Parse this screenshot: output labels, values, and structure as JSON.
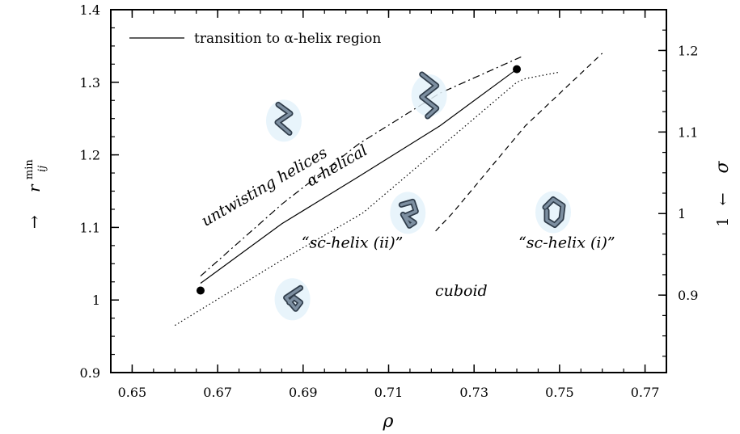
{
  "chart_data": {
    "type": "line",
    "title": "",
    "xlabel": "ρ",
    "ylabel_left": {
      "base": "r",
      "sup": "min",
      "sub": "ij",
      "arrow": "→"
    },
    "ylabel_right": {
      "text": "1",
      "arrow": "←",
      "symbol": "σ"
    },
    "xlim": [
      0.645,
      0.775
    ],
    "ylim": [
      0.9,
      1.4
    ],
    "ylim_right": [
      0.805,
      1.25
    ],
    "x_ticks": [
      0.65,
      0.67,
      0.69,
      0.71,
      0.73,
      0.75,
      0.77
    ],
    "x_tick_labels": [
      "0.65",
      "0.67",
      "0.69",
      "0.71",
      "0.73",
      "0.75",
      "0.77"
    ],
    "y_ticks": [
      0.9,
      1.0,
      1.1,
      1.2,
      1.3,
      1.4
    ],
    "y_tick_labels": [
      "0.9",
      "1",
      "1.1",
      "1.2",
      "1.3",
      "1.4"
    ],
    "y_right_ticks": [
      0.9,
      1.0,
      1.1,
      1.2
    ],
    "y_right_tick_labels": [
      "0.9",
      "1",
      "1.1",
      "1.2"
    ],
    "grid": false,
    "legend_position": "top-left",
    "series": [
      {
        "name": "transition to α-helix region",
        "style": "solid",
        "points": [
          [
            0.666,
            1.023
          ],
          [
            0.685,
            1.105
          ],
          [
            0.703,
            1.17
          ],
          [
            0.722,
            1.24
          ],
          [
            0.74,
            1.318
          ]
        ]
      },
      {
        "style": "dashdot",
        "points": [
          [
            0.666,
            1.033
          ],
          [
            0.685,
            1.132
          ],
          [
            0.703,
            1.215
          ],
          [
            0.722,
            1.285
          ],
          [
            0.741,
            1.335
          ]
        ]
      },
      {
        "style": "dotted",
        "points": [
          [
            0.66,
            0.965
          ],
          [
            0.685,
            1.055
          ],
          [
            0.704,
            1.12
          ],
          [
            0.722,
            1.21
          ],
          [
            0.74,
            1.3
          ],
          [
            0.742,
            1.305
          ],
          [
            0.75,
            1.314
          ]
        ]
      },
      {
        "style": "dashed",
        "points": [
          [
            0.721,
            1.095
          ],
          [
            0.725,
            1.12
          ],
          [
            0.742,
            1.24
          ],
          [
            0.76,
            1.34
          ]
        ]
      }
    ],
    "markers": [
      {
        "x": 0.666,
        "y": 1.013
      },
      {
        "x": 0.74,
        "y": 1.318
      }
    ],
    "annotations": [
      {
        "text": "untwisting helices",
        "x": 0.6815,
        "y": 1.15,
        "rotate": -30
      },
      {
        "text": "α-helical",
        "x": 0.6985,
        "y": 1.179,
        "rotate": -30
      },
      {
        "text": "“sc-helix (ii)”",
        "x": 0.7015,
        "y": 1.072,
        "rotate": 0
      },
      {
        "text": "“sc-helix (i)”",
        "x": 0.7517,
        "y": 1.072,
        "rotate": 0
      },
      {
        "text": "cuboid",
        "x": 0.727,
        "y": 1.006,
        "rotate": 0
      }
    ],
    "structure_icons": [
      {
        "name": "untwisting-helix-structure-icon",
        "kind": "zigzag",
        "x": 0.6855,
        "y": 1.247
      },
      {
        "name": "alpha-helix-structure-icon",
        "kind": "zigzag-tall",
        "x": 0.7195,
        "y": 1.282
      },
      {
        "name": "sc-helix-ii-structure-icon",
        "kind": "twist",
        "x": 0.7145,
        "y": 1.12
      },
      {
        "name": "sc-helix-i-structure-icon",
        "kind": "pentagon",
        "x": 0.7485,
        "y": 1.121
      },
      {
        "name": "cuboid-structure-icon",
        "kind": "chevron",
        "x": 0.6875,
        "y": 1.001
      }
    ]
  }
}
